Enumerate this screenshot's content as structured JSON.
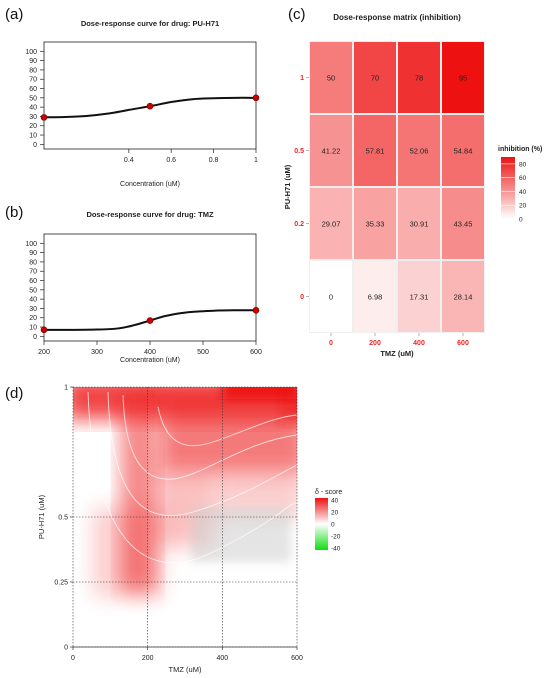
{
  "panels": {
    "a": "(a)",
    "b": "(b)",
    "c": "(c)",
    "d": "(d)"
  },
  "chart_data": [
    {
      "id": "a",
      "type": "line",
      "title": "Dose-response curve for drug: PU-H71",
      "xlabel": "Concentration (uM)",
      "ylabel": "",
      "xlim": [
        0,
        1
      ],
      "ylim": [
        -5,
        110
      ],
      "xticks": [
        0.4,
        0.6,
        0.8,
        1
      ],
      "xtick_labels": [
        "0.4",
        "0.6",
        "0.8",
        "1"
      ],
      "yticks": [
        0,
        10,
        20,
        30,
        40,
        50,
        60,
        70,
        80,
        90,
        100
      ],
      "points": {
        "x": [
          0,
          0.5,
          1
        ],
        "y": [
          29,
          41,
          50
        ]
      },
      "curve": {
        "x": [
          0,
          0.1,
          0.2,
          0.3,
          0.4,
          0.5,
          0.6,
          0.7,
          0.8,
          0.9,
          1
        ],
        "y": [
          29,
          29.4,
          30.5,
          33,
          37,
          41,
          45.5,
          48.5,
          49.5,
          50,
          50
        ]
      },
      "point_color": "#cc0000"
    },
    {
      "id": "b",
      "type": "line",
      "title": "Dose-response curve for drug: TMZ",
      "xlabel": "Concentration (uM)",
      "ylabel": "",
      "xlim": [
        200,
        600
      ],
      "ylim": [
        -5,
        110
      ],
      "xticks": [
        200,
        300,
        400,
        500,
        600
      ],
      "xtick_labels": [
        "200",
        "300",
        "400",
        "500",
        "600"
      ],
      "yticks": [
        0,
        10,
        20,
        30,
        40,
        50,
        60,
        70,
        80,
        90,
        100
      ],
      "points": {
        "x": [
          200,
          400,
          600
        ],
        "y": [
          7,
          17,
          28
        ]
      },
      "curve": {
        "x": [
          200,
          250,
          300,
          340,
          370,
          400,
          430,
          470,
          520,
          560,
          600
        ],
        "y": [
          7,
          7,
          7.3,
          8.5,
          12,
          17,
          22,
          25.8,
          27.5,
          28,
          28
        ]
      },
      "point_color": "#cc0000"
    },
    {
      "id": "c",
      "type": "heatmap",
      "title": "Dose-response matrix (inhibition)",
      "xlabel": "TMZ (uM)",
      "ylabel": "PU-H71 (uM)",
      "x": [
        "0",
        "200",
        "400",
        "600"
      ],
      "y": [
        "0",
        "0.2",
        "0.5",
        "1"
      ],
      "values": [
        [
          "0",
          "6.98",
          "17.31",
          "28.14"
        ],
        [
          "29.07",
          "35.33",
          "30.91",
          "43.45"
        ],
        [
          "41.22",
          "57.81",
          "52.06",
          "54.84"
        ],
        [
          "50",
          "70",
          "78",
          "95"
        ]
      ],
      "legend_title": "inhibition (%)",
      "legend_ticks": [
        "0",
        "20",
        "40",
        "60",
        "80"
      ],
      "legend_range": [
        0,
        90
      ],
      "low_color": "#ffffff",
      "high_color": "#ee1111",
      "tick_label_color": "#ee2222"
    },
    {
      "id": "d",
      "type": "heatmap",
      "title": "",
      "xlabel": "TMZ (uM)",
      "ylabel": "PU-H71 (uM)",
      "xticks": [
        0,
        200,
        400,
        600
      ],
      "xtick_labels": [
        "0",
        "200",
        "400",
        "600"
      ],
      "yticks": [
        0,
        0.25,
        0.5,
        1
      ],
      "ytick_labels": [
        "0",
        "0.25",
        "0.5",
        "1"
      ],
      "grid": true,
      "legend_title": "δ - score",
      "legend_ticks": [
        "40",
        "20",
        "0",
        "-20",
        "-40"
      ],
      "legend_colors": {
        "high": "#ee1111",
        "mid": "#ffffff",
        "low": "#11dd11"
      }
    }
  ]
}
